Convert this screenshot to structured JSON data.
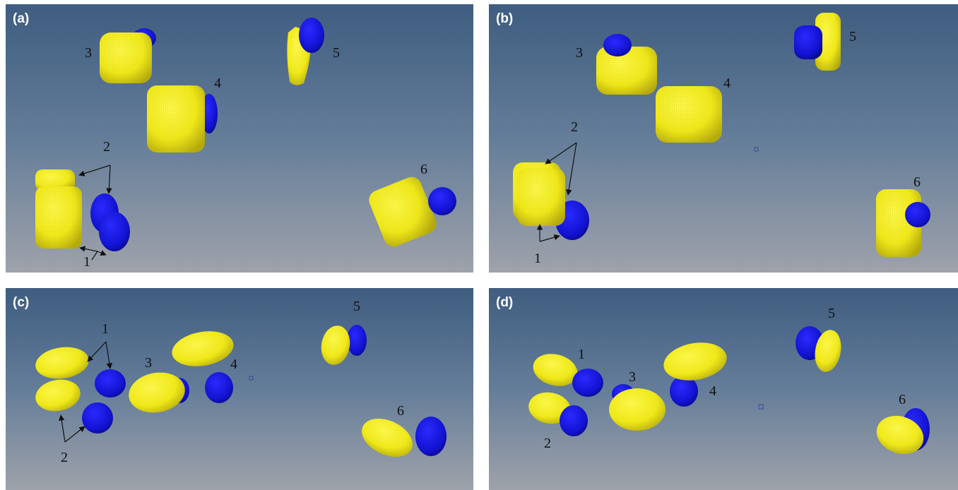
{
  "figure": {
    "panels": [
      {
        "id": "a",
        "label": "(a)",
        "particles": [
          "1",
          "2",
          "3",
          "4",
          "5",
          "6"
        ]
      },
      {
        "id": "b",
        "label": "(b)",
        "particles": [
          "1",
          "2",
          "3",
          "4",
          "5",
          "6"
        ]
      },
      {
        "id": "c",
        "label": "(c)",
        "particles": [
          "1",
          "2",
          "3",
          "4",
          "5",
          "6"
        ]
      },
      {
        "id": "d",
        "label": "(d)",
        "particles": [
          "1",
          "2",
          "3",
          "4",
          "5",
          "6"
        ]
      }
    ]
  },
  "colors": {
    "particle_fill": "#f2ee1c",
    "particle_shadow": "#b8ac0a",
    "blue_object": "#1414d8",
    "background_top": "#3f5d80",
    "background_bottom": "#9ea2aa"
  }
}
